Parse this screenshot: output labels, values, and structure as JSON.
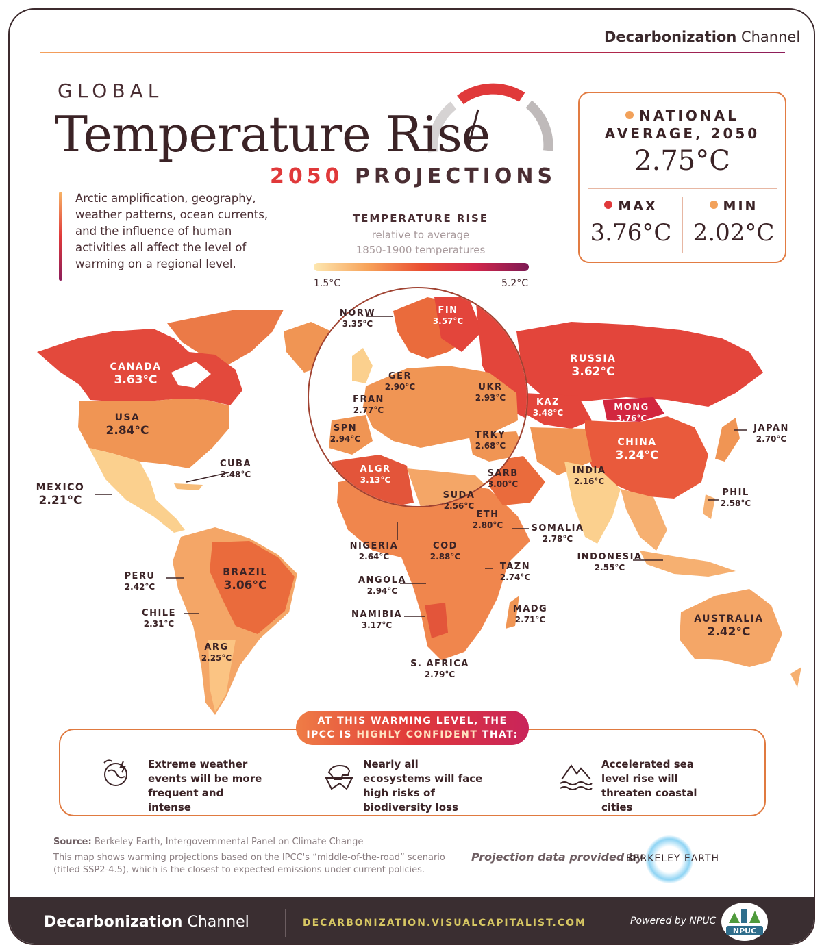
{
  "brand": {
    "name_bold": "Decarbonization",
    "name_light": " Channel"
  },
  "title": {
    "line1": "GLOBAL",
    "line2": "Temperature Rise",
    "year": "2050",
    "line3": " PROJECTIONS"
  },
  "intro": "Arctic amplification, geography, weather patterns, ocean currents, and the influence of human activities all affect the level of warming on a regional level.",
  "legend": {
    "title": "TEMPERATURE RISE",
    "sub1": "relative to average",
    "sub2": "1850-1900 temperatures",
    "min": "1.5°C",
    "max": "5.2°C"
  },
  "stats": {
    "label1": "NATIONAL",
    "label2": "AVERAGE, 2050",
    "average": "2.75°C",
    "max_label": "MAX",
    "max": "3.76°C",
    "min_label": "MIN",
    "min": "2.02°C"
  },
  "colors": {
    "max_dot": "#e0393a",
    "min_dot": "#f2a15a",
    "avg_dot": "#f2a15a"
  },
  "countries": [
    {
      "name": "CANADA",
      "value": "3.63°C"
    },
    {
      "name": "USA",
      "value": "2.84°C"
    },
    {
      "name": "MEXICO",
      "value": "2.21°C"
    },
    {
      "name": "CUBA",
      "value": "2.48°C"
    },
    {
      "name": "PERU",
      "value": "2.42°C"
    },
    {
      "name": "BRAZIL",
      "value": "3.06°C"
    },
    {
      "name": "CHILE",
      "value": "2.31°C"
    },
    {
      "name": "ARG",
      "value": "2.25°C"
    },
    {
      "name": "NORW",
      "value": "3.35°C"
    },
    {
      "name": "FIN",
      "value": "3.57°C"
    },
    {
      "name": "GER",
      "value": "2.90°C"
    },
    {
      "name": "FRAN",
      "value": "2.77°C"
    },
    {
      "name": "UKR",
      "value": "2.93°C"
    },
    {
      "name": "SPN",
      "value": "2.94°C"
    },
    {
      "name": "TRKY",
      "value": "2.68°C"
    },
    {
      "name": "ALGR",
      "value": "3.13°C"
    },
    {
      "name": "RUSSIA",
      "value": "3.62°C"
    },
    {
      "name": "KAZ",
      "value": "3.48°C"
    },
    {
      "name": "MONG",
      "value": "3.76°C"
    },
    {
      "name": "CHINA",
      "value": "3.24°C"
    },
    {
      "name": "JAPAN",
      "value": "2.70°C"
    },
    {
      "name": "INDIA",
      "value": "2.16°C"
    },
    {
      "name": "SARB",
      "value": "3.00°C"
    },
    {
      "name": "SUDA",
      "value": "2.56°C"
    },
    {
      "name": "ETH",
      "value": "2.80°C"
    },
    {
      "name": "SOMALIA",
      "value": "2.78°C"
    },
    {
      "name": "PHIL",
      "value": "2.58°C"
    },
    {
      "name": "INDONESIA",
      "value": "2.55°C"
    },
    {
      "name": "NIGERIA",
      "value": "2.64°C"
    },
    {
      "name": "COD",
      "value": "2.88°C"
    },
    {
      "name": "TAZN",
      "value": "2.74°C"
    },
    {
      "name": "ANGOLA",
      "value": "2.94°C"
    },
    {
      "name": "MADG",
      "value": "2.71°C"
    },
    {
      "name": "NAMIBIA",
      "value": "3.17°C"
    },
    {
      "name": "S. AFRICA",
      "value": "2.79°C"
    },
    {
      "name": "AUSTRALIA",
      "value": "2.42°C"
    }
  ],
  "ipcc": {
    "pill1": "AT THIS WARMING LEVEL, THE",
    "pill2a": "IPCC IS ",
    "pill2b": "HIGHLY CONFIDENT",
    "pill2c": " THAT:",
    "items": [
      {
        "text": "Extreme weather events will be more frequent and intense",
        "icon": "storm-globe-icon"
      },
      {
        "text": "Nearly all ecosystems will face high risks of biodiversity loss",
        "icon": "polar-bear-icon"
      },
      {
        "text": "Accelerated sea level rise will threaten coastal cities",
        "icon": "flooded-city-icon"
      }
    ]
  },
  "source": {
    "label": "Source:",
    "text": " Berkeley Earth, Intergovernmental Panel on Climate Change"
  },
  "note": "This map shows warming projections based on the IPCC's “middle-of-the-road” scenario (titled SSP2-4.5), which is the closest to expected emissions under current policies.",
  "provided_by": "Projection data provided by",
  "berkeley": "BERKELEY EARTH",
  "footer": {
    "url": "DECARBONIZATION.VISUALCAPITALIST.COM",
    "powered": "Powered by NPUC",
    "npuc": "NPUC"
  }
}
